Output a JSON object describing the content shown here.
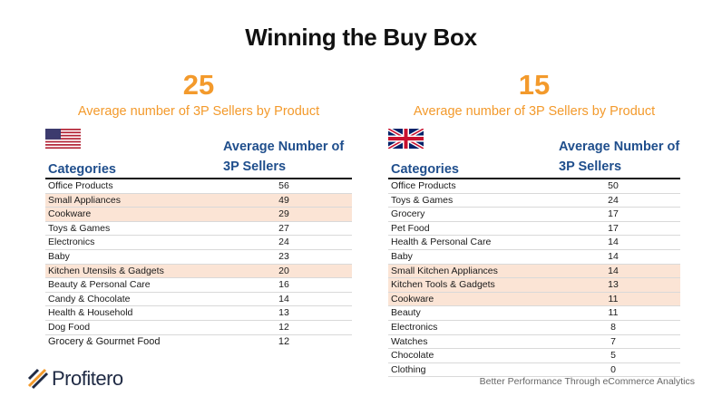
{
  "title": "Winning the Buy Box",
  "us": {
    "big_number": "25",
    "subtitle": "Average number of 3P Sellers by Product",
    "flag": "us-flag-icon",
    "col_category": "Categories",
    "col_value": "Average Number of 3P Sellers",
    "rows": [
      {
        "category": "Office Products",
        "value": "56",
        "highlight": false
      },
      {
        "category": "Small Appliances",
        "value": "49",
        "highlight": true
      },
      {
        "category": "Cookware",
        "value": "29",
        "highlight": true
      },
      {
        "category": "Toys & Games",
        "value": "27",
        "highlight": false
      },
      {
        "category": "Electronics",
        "value": "24",
        "highlight": false
      },
      {
        "category": "Baby",
        "value": "23",
        "highlight": false
      },
      {
        "category": "Kitchen Utensils & Gadgets",
        "value": "20",
        "highlight": true
      },
      {
        "category": "Beauty & Personal Care",
        "value": "16",
        "highlight": false
      },
      {
        "category": "Candy & Chocolate",
        "value": "14",
        "highlight": false
      },
      {
        "category": "Health & Household",
        "value": "13",
        "highlight": false
      },
      {
        "category": "Dog Food",
        "value": "12",
        "highlight": false
      },
      {
        "category": "Grocery & Gourmet Food",
        "value": "12",
        "highlight": false
      }
    ]
  },
  "uk": {
    "big_number": "15",
    "subtitle": "Average number of 3P Sellers by Product",
    "flag": "uk-flag-icon",
    "col_category": "Categories",
    "col_value": "Average Number of 3P Sellers",
    "rows": [
      {
        "category": "Office Products",
        "value": "50",
        "highlight": false
      },
      {
        "category": "Toys & Games",
        "value": "24",
        "highlight": false
      },
      {
        "category": "Grocery",
        "value": "17",
        "highlight": false
      },
      {
        "category": "Pet Food",
        "value": "17",
        "highlight": false
      },
      {
        "category": "Health & Personal Care",
        "value": "14",
        "highlight": false
      },
      {
        "category": "Baby",
        "value": "14",
        "highlight": false
      },
      {
        "category": "Small Kitchen Appliances",
        "value": "14",
        "highlight": true
      },
      {
        "category": "Kitchen Tools & Gadgets",
        "value": "13",
        "highlight": true
      },
      {
        "category": "Cookware",
        "value": "11",
        "highlight": true
      },
      {
        "category": "Beauty",
        "value": "11",
        "highlight": false
      },
      {
        "category": "Electronics",
        "value": "8",
        "highlight": false
      },
      {
        "category": "Watches",
        "value": "7",
        "highlight": false
      },
      {
        "category": "Chocolate",
        "value": "5",
        "highlight": false
      },
      {
        "category": "Clothing",
        "value": "0",
        "highlight": false
      }
    ]
  },
  "footer": {
    "logo_text": "Profitero",
    "tagline": "Better Performance Through eCommerce Analytics"
  },
  "colors": {
    "accent_orange": "#f39a2c",
    "header_blue": "#1f4e8c",
    "highlight_row": "#fbe4d5"
  }
}
